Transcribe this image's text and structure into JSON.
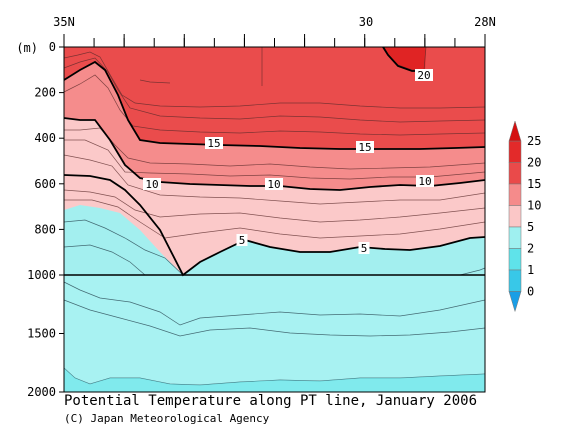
{
  "chart_data": {
    "type": "heatmap",
    "title": "Potential Temperature along PT line, January 2006",
    "credit": "(C) Japan Meteorological Agency",
    "ylabel": "(m)",
    "x_axis": {
      "direction": "north-to-south",
      "range": [
        "35N",
        "28N"
      ],
      "tick_labels": [
        "35N",
        "30",
        "28N"
      ]
    },
    "y_axis": {
      "range": [
        0,
        2000
      ],
      "scale_break_at": 1000,
      "ticks_upper": [
        0,
        200,
        400,
        600,
        800,
        1000
      ],
      "ticks_lower": [
        1500,
        2000
      ]
    },
    "colorbar": {
      "levels": [
        0,
        1,
        2,
        5,
        10,
        15,
        20,
        25
      ],
      "bins": [
        {
          "range": "<0",
          "color": "#1a9ee6"
        },
        {
          "range": "0-1",
          "color": "#38c8e8"
        },
        {
          "range": "1-2",
          "color": "#5fe3ea"
        },
        {
          "range": "2-5",
          "color": "#9ff0f0"
        },
        {
          "range": "5-10",
          "color": "#fbc7c7"
        },
        {
          "range": "10-15",
          "color": "#f58b8b"
        },
        {
          "range": "15-20",
          "color": "#ea4a4a"
        },
        {
          "range": "20-25",
          "color": "#e32a2a"
        },
        {
          "range": ">25",
          "color": "#d41010"
        }
      ]
    },
    "contour_labels": [
      {
        "value": "20"
      },
      {
        "value": "15"
      },
      {
        "value": "15"
      },
      {
        "value": "10"
      },
      {
        "value": "10"
      },
      {
        "value": "10"
      },
      {
        "value": "5"
      },
      {
        "value": "5"
      }
    ]
  }
}
